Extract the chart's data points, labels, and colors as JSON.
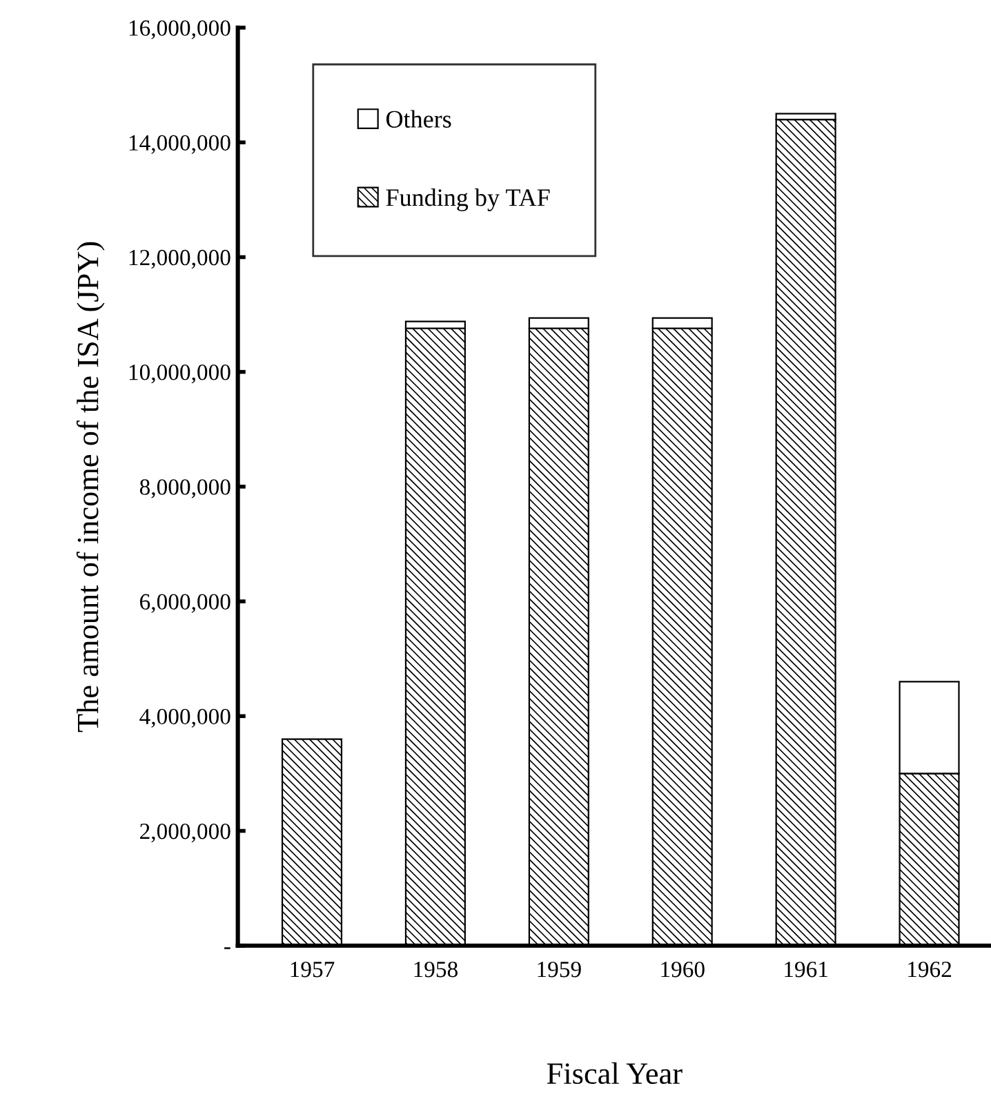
{
  "chart_data": {
    "type": "bar",
    "stacked": true,
    "xlabel": "Fiscal Year",
    "ylabel": "The amount of income of the ISA (JPY)",
    "categories": [
      "1957",
      "1958",
      "1959",
      "1960",
      "1961",
      "1962"
    ],
    "series": [
      {
        "name": "Funding by TAF",
        "color": "#000000",
        "values": [
          3600000,
          10760000,
          10760000,
          10760000,
          14400000,
          3000000
        ]
      },
      {
        "name": "Others",
        "color": "#ffffff",
        "values": [
          null,
          120000,
          180000,
          180000,
          100000,
          1600000
        ]
      }
    ],
    "ylim": [
      0,
      16000000
    ],
    "yticks": [
      {
        "value": 0,
        "label": "-"
      },
      {
        "value": 2000000,
        "label": "2,000,000"
      },
      {
        "value": 4000000,
        "label": "4,000,000"
      },
      {
        "value": 6000000,
        "label": "6,000,000"
      },
      {
        "value": 8000000,
        "label": "8,000,000"
      },
      {
        "value": 10000000,
        "label": "10,000,000"
      },
      {
        "value": 12000000,
        "label": "12,000,000"
      },
      {
        "value": 14000000,
        "label": "14,000,000"
      },
      {
        "value": 16000000,
        "label": "16,000,000"
      }
    ],
    "grid": false,
    "legend": "top left"
  }
}
